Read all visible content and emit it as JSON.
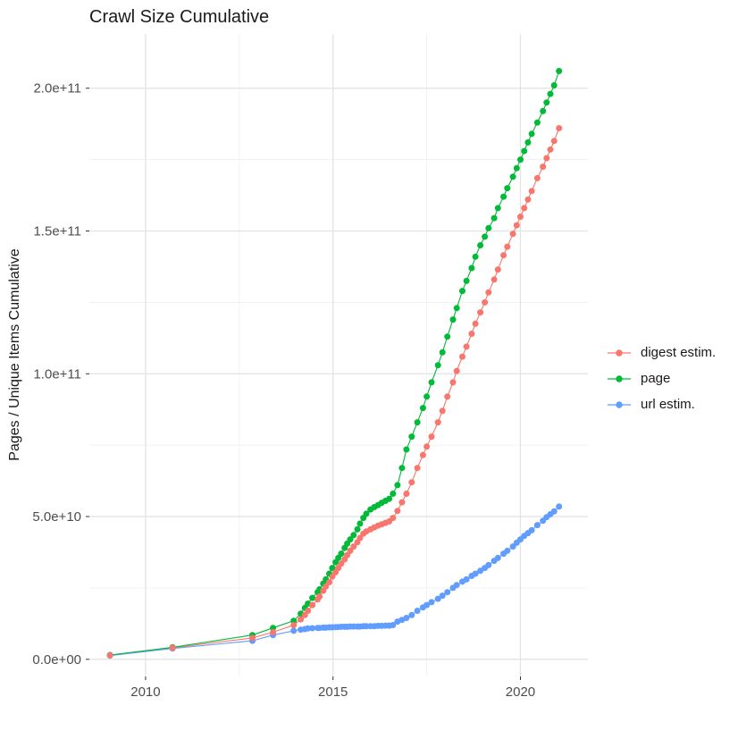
{
  "page": {
    "background": "#FFFFFF"
  },
  "chart_data": {
    "type": "scatter",
    "title": "Crawl Size Cumulative",
    "xlabel": "",
    "ylabel": "Pages / Unique Items Cumulative",
    "legend_position": "right",
    "grid": true,
    "colors": {
      "grid_major": "#E3E3E3",
      "grid_minor": "#F1F1F1",
      "axis_text": "#4D4D4D",
      "title_text": "#1A1A1A",
      "tick_mark": "#333333"
    },
    "x_axis": {
      "major_ticks": [
        2010,
        2015,
        2020
      ],
      "major_labels": [
        "2010",
        "2015",
        "2020"
      ],
      "minor_ticks": [
        2012.5,
        2017.5
      ],
      "lim": [
        2008.5,
        2021.8
      ]
    },
    "y_axis": {
      "unit": "1e9",
      "major_ticks_billion": [
        0,
        50,
        100,
        150,
        200
      ],
      "major_labels": [
        "0.0e+00",
        "5.0e+10",
        "1.0e+11",
        "1.5e+11",
        "2.0e+11"
      ],
      "minor_ticks_billion": [
        25,
        75,
        125,
        175
      ],
      "lim_billion": [
        -6,
        219
      ]
    },
    "x_years": [
      2009.05,
      2010.72,
      2012.85,
      2013.4,
      2013.95,
      2014.14,
      2014.25,
      2014.33,
      2014.45,
      2014.59,
      2014.64,
      2014.74,
      2014.81,
      2014.9,
      2014.98,
      2015.07,
      2015.14,
      2015.22,
      2015.31,
      2015.38,
      2015.46,
      2015.55,
      2015.65,
      2015.72,
      2015.81,
      2015.89,
      2016.0,
      2016.1,
      2016.2,
      2016.3,
      2016.4,
      2016.5,
      2016.6,
      2016.72,
      2016.84,
      2016.96,
      2017.1,
      2017.25,
      2017.4,
      2017.5,
      2017.63,
      2017.8,
      2017.92,
      2018.05,
      2018.2,
      2018.3,
      2018.45,
      2018.56,
      2018.7,
      2018.8,
      2018.93,
      2019.05,
      2019.15,
      2019.3,
      2019.4,
      2019.55,
      2019.65,
      2019.8,
      2019.9,
      2020.0,
      2020.1,
      2020.2,
      2020.3,
      2020.45,
      2020.6,
      2020.7,
      2020.8,
      2020.9,
      2021.03
    ],
    "series": [
      {
        "name": "digest estim.",
        "color": "#F8766D",
        "values_billion": [
          1.4,
          4.0,
          7.5,
          9.5,
          12,
          14,
          15.5,
          17,
          19,
          21,
          22,
          24,
          25.5,
          27,
          29,
          30.5,
          32,
          33.5,
          35,
          36.5,
          38,
          39.5,
          41,
          42.5,
          44,
          44.8,
          45.5,
          46.2,
          46.8,
          47.3,
          47.8,
          48.3,
          49.5,
          52,
          55,
          58,
          62,
          67,
          71.5,
          74.5,
          78,
          83,
          87,
          92,
          97,
          101,
          106,
          109.5,
          114,
          117.5,
          121.5,
          125,
          128.5,
          133,
          136.5,
          141.5,
          144.5,
          149,
          152,
          155,
          158,
          161,
          164,
          168.5,
          172.5,
          175.5,
          178.5,
          181.5,
          186
        ]
      },
      {
        "name": "page",
        "color": "#00BA38",
        "values_billion": [
          1.5,
          4.2,
          8.5,
          11,
          13.5,
          16,
          18,
          19.5,
          21.5,
          23.5,
          24.5,
          26.5,
          28,
          30,
          32,
          34,
          35.5,
          37,
          39,
          40.5,
          42,
          43.5,
          45.5,
          47.5,
          49.5,
          51,
          52.5,
          53.3,
          54,
          54.8,
          55.5,
          56.2,
          58,
          61,
          67,
          73.5,
          78,
          83,
          88,
          92,
          97,
          103,
          107.5,
          113,
          119,
          123,
          129,
          132.5,
          137,
          141,
          145,
          148,
          151,
          154.5,
          158,
          162,
          165,
          169,
          172,
          175,
          178,
          181,
          184,
          188,
          192,
          195,
          198,
          201,
          206
        ]
      },
      {
        "name": "url estim.",
        "color": "#619CFF",
        "values_billion": [
          1.3,
          3.8,
          6.5,
          8.5,
          10,
          10.4,
          10.6,
          10.8,
          10.9,
          11,
          11,
          11.1,
          11.1,
          11.2,
          11.2,
          11.3,
          11.3,
          11.4,
          11.4,
          11.4,
          11.5,
          11.5,
          11.5,
          11.5,
          11.6,
          11.6,
          11.6,
          11.6,
          11.7,
          11.7,
          11.8,
          11.8,
          12,
          13.2,
          13.8,
          14.5,
          15.5,
          17,
          18.2,
          19,
          20,
          21.2,
          22.3,
          23.5,
          25,
          26,
          27.2,
          28,
          29.2,
          30,
          31,
          32,
          33,
          34.5,
          35.5,
          37,
          38,
          39.5,
          40.8,
          42,
          43.2,
          44.2,
          45.2,
          47,
          48.5,
          49.8,
          50.8,
          51.8,
          53.5
        ]
      }
    ]
  }
}
